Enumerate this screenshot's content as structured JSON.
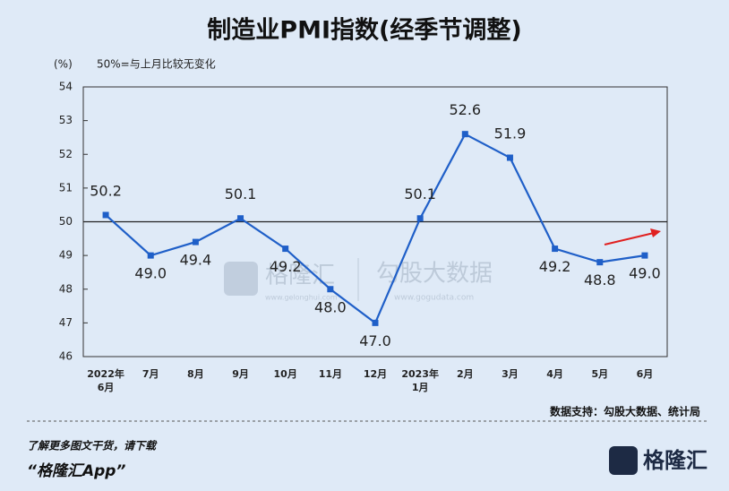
{
  "chart_data": {
    "type": "line",
    "title": "制造业PMI指数(经季节调整)",
    "y_unit": "(%)",
    "annotation": "50%=与上月比较无变化",
    "categories": [
      "2022年\n6月",
      "7月",
      "8月",
      "9月",
      "10月",
      "11月",
      "12月",
      "2023年\n1月",
      "2月",
      "3月",
      "4月",
      "5月",
      "6月"
    ],
    "series": [
      {
        "name": "制造业PMI",
        "color": "#1f5fc8",
        "values": [
          50.2,
          49.0,
          49.4,
          50.1,
          49.2,
          48.0,
          47.0,
          50.1,
          52.6,
          51.9,
          49.2,
          48.8,
          49.0
        ],
        "value_labels": [
          "50.2",
          "49.0",
          "49.4",
          "50.1",
          "49.2",
          "48.0",
          "47.0",
          "50.1",
          "52.6",
          "51.9",
          "49.2",
          "48.8",
          "49.0"
        ]
      }
    ],
    "ylim": [
      46,
      54
    ],
    "yticks": [
      46,
      47,
      48,
      49,
      50,
      51,
      52,
      53,
      54
    ],
    "reference_line": 50,
    "source": "数据支持：勾股大数据、统计局"
  },
  "watermark": {
    "brand": "格隆汇",
    "brand_url": "www.gelonghui.com",
    "partner": "勾股大数据",
    "partner_url": "www.gogudata.com"
  },
  "footer": {
    "prompt": "了解更多图文干货，请下载",
    "app": "“格隆汇App”",
    "logo": "格隆汇"
  }
}
